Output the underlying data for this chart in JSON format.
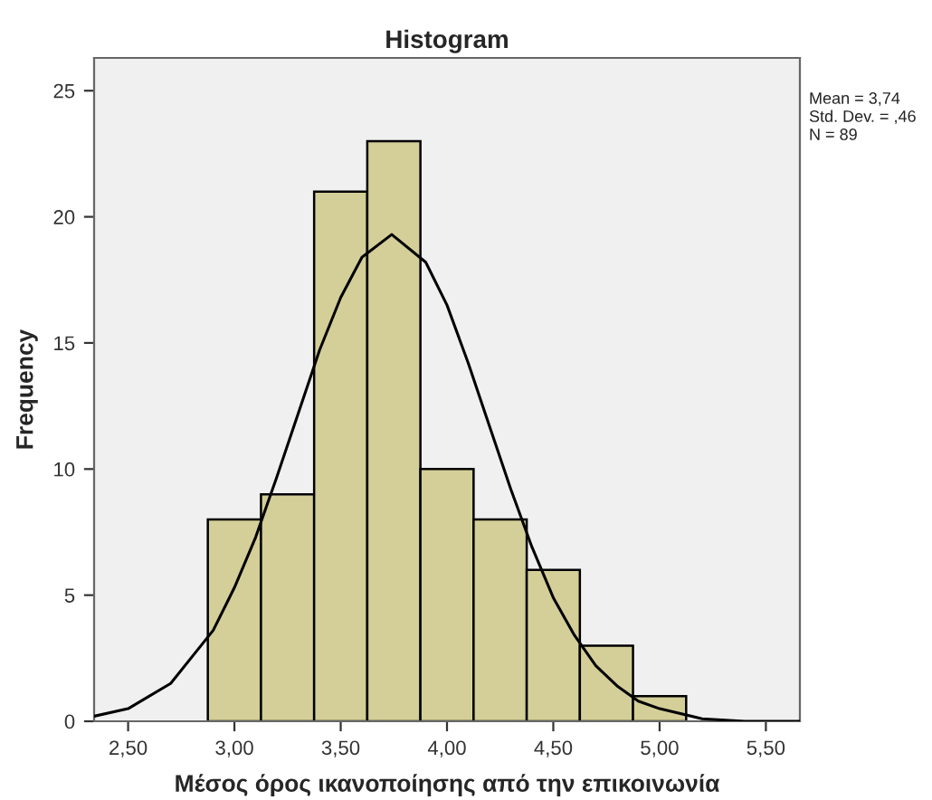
{
  "chart_data": {
    "type": "histogram",
    "title": "Histogram",
    "xlabel": "Μέσος όρος ικανοποίησης από την επικοινωνία",
    "ylabel": "Frequency",
    "bins": [
      2.875,
      3.125,
      3.375,
      3.625,
      3.875,
      4.125,
      4.375,
      4.625,
      4.875,
      5.125
    ],
    "values": [
      8,
      9,
      21,
      23,
      10,
      8,
      6,
      3,
      1
    ],
    "color": "#d4cf98",
    "series": [
      {
        "type": "line",
        "color": "#000000",
        "x": [
          2.34,
          2.5,
          2.7,
          2.9,
          3.0,
          3.1,
          3.2,
          3.3,
          3.4,
          3.5,
          3.6,
          3.74,
          3.9,
          4.0,
          4.1,
          4.2,
          4.3,
          4.4,
          4.5,
          4.6,
          4.7,
          4.8,
          4.9,
          5.0,
          5.2,
          5.4,
          5.66
        ],
        "values": [
          0.2,
          0.5,
          1.5,
          3.6,
          5.3,
          7.3,
          9.7,
          12.2,
          14.7,
          16.8,
          18.4,
          19.3,
          18.2,
          16.5,
          14.2,
          11.7,
          9.2,
          6.9,
          4.9,
          3.4,
          2.2,
          1.4,
          0.8,
          0.5,
          0.1,
          0.0,
          0.0
        ]
      }
    ],
    "xlim": [
      2.34,
      5.66
    ],
    "ylim": [
      0,
      26.3
    ],
    "xticks": [
      {
        "value": 2.5,
        "label": "2,50"
      },
      {
        "value": 3.0,
        "label": "3,00"
      },
      {
        "value": 3.5,
        "label": "3,50"
      },
      {
        "value": 4.0,
        "label": "4,00"
      },
      {
        "value": 4.5,
        "label": "4,50"
      },
      {
        "value": 5.0,
        "label": "5,00"
      },
      {
        "value": 5.5,
        "label": "5,50"
      }
    ],
    "yticks": [
      0,
      5,
      10,
      15,
      20,
      25
    ],
    "annotations": [
      "Mean = 3,74",
      "Std. Dev. = ,46",
      "N = 89"
    ],
    "grid": false,
    "legend": false
  }
}
